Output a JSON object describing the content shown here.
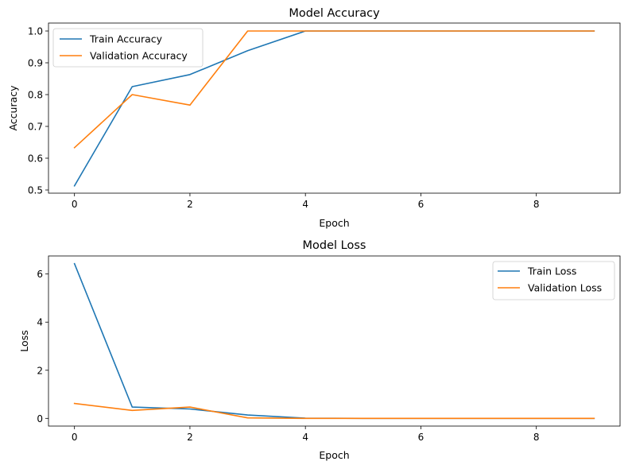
{
  "colors": {
    "series1": "#1f77b4",
    "series2": "#ff7f0e",
    "axis": "#000000",
    "legend_border": "#cccccc"
  },
  "chart_data": [
    {
      "type": "line",
      "title": "Model Accuracy",
      "xlabel": "Epoch",
      "ylabel": "Accuracy",
      "xlim": [
        -0.45,
        9.45
      ],
      "ylim": [
        0.49,
        1.025
      ],
      "xticks": [
        0,
        2,
        4,
        6,
        8
      ],
      "xtick_labels": [
        "0",
        "2",
        "4",
        "6",
        "8"
      ],
      "yticks": [
        0.5,
        0.6,
        0.7,
        0.8,
        0.9,
        1.0
      ],
      "ytick_labels": [
        "0.5",
        "0.6",
        "0.7",
        "0.8",
        "0.9",
        "1.0"
      ],
      "grid": false,
      "legend_position": "upper-left",
      "x": [
        0,
        1,
        2,
        3,
        4,
        5,
        6,
        7,
        8,
        9
      ],
      "series": [
        {
          "name": "Train Accuracy",
          "color": "#1f77b4",
          "values": [
            0.513,
            0.825,
            0.863,
            0.938,
            1.0,
            1.0,
            1.0,
            1.0,
            1.0,
            1.0
          ]
        },
        {
          "name": "Validation Accuracy",
          "color": "#ff7f0e",
          "values": [
            0.633,
            0.8,
            0.767,
            1.0,
            1.0,
            1.0,
            1.0,
            1.0,
            1.0,
            1.0
          ]
        }
      ]
    },
    {
      "type": "line",
      "title": "Model Loss",
      "xlabel": "Epoch",
      "ylabel": "Loss",
      "xlim": [
        -0.45,
        9.45
      ],
      "ylim": [
        -0.32,
        6.75
      ],
      "xticks": [
        0,
        2,
        4,
        6,
        8
      ],
      "xtick_labels": [
        "0",
        "2",
        "4",
        "6",
        "8"
      ],
      "yticks": [
        0,
        2,
        4,
        6
      ],
      "ytick_labels": [
        "0",
        "2",
        "4",
        "6"
      ],
      "grid": false,
      "legend_position": "upper-right",
      "x": [
        0,
        1,
        2,
        3,
        4,
        5,
        6,
        7,
        8,
        9
      ],
      "series": [
        {
          "name": "Train Loss",
          "color": "#1f77b4",
          "values": [
            6.43,
            0.47,
            0.39,
            0.14,
            0.01,
            0.0,
            0.0,
            0.0,
            0.0,
            0.0
          ]
        },
        {
          "name": "Validation Loss",
          "color": "#ff7f0e",
          "values": [
            0.62,
            0.33,
            0.47,
            0.02,
            0.0,
            0.0,
            0.0,
            0.0,
            0.0,
            0.0
          ]
        }
      ]
    }
  ]
}
